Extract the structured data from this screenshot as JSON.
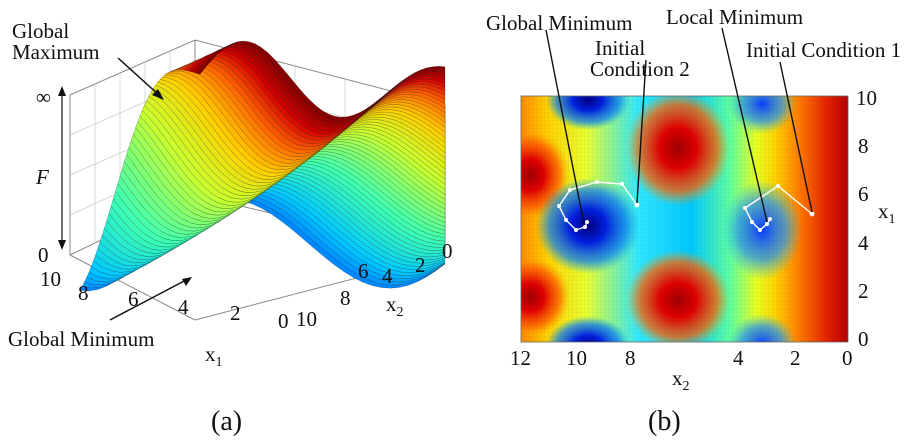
{
  "panel_a": {
    "annotations": {
      "global_max": [
        "Global",
        "Maximum"
      ],
      "global_min": "Global Minimum"
    },
    "z_label": "F",
    "z_ticks": [
      "∞",
      "0"
    ],
    "x1_label": "x",
    "x1_sub": "1",
    "x1_ticks": [
      "10",
      "8",
      "6",
      "4",
      "2",
      "0"
    ],
    "x2_label": "x",
    "x2_sub": "2",
    "x2_ticks": [
      "10",
      "8",
      "6",
      "4",
      "2",
      "0"
    ],
    "caption": "(a)",
    "colors": [
      "#0000aa",
      "#0050ff",
      "#00c8ff",
      "#40ffb0",
      "#c8ff30",
      "#ffd000",
      "#ff6a00",
      "#d40000",
      "#7a0000"
    ]
  },
  "panel_b": {
    "annotations": {
      "global_min": "Global Minimum",
      "ic2": [
        "Initial",
        "Condition 2"
      ],
      "local_min": "Local Minimum",
      "ic1": "Initial Condition 1"
    },
    "x1_label": "x",
    "x1_sub": "1",
    "x1_ticks": [
      "10",
      "8",
      "6",
      "4",
      "2",
      "0"
    ],
    "x2_label": "x",
    "x2_sub": "2",
    "x2_ticks": [
      "12",
      "10",
      "8",
      "4",
      "2",
      "0"
    ],
    "caption": "(b)"
  }
}
